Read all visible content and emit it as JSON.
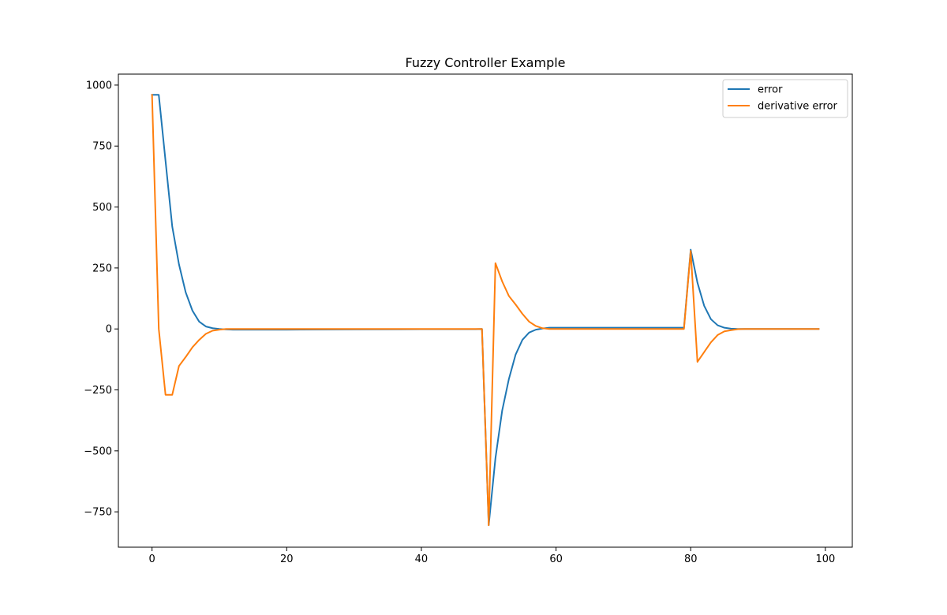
{
  "chart_data": {
    "type": "line",
    "title": "Fuzzy Controller Example",
    "xlabel": "",
    "ylabel": "",
    "xlim": [
      -5,
      104
    ],
    "ylim": [
      -895,
      1045
    ],
    "x_ticks": [
      0,
      20,
      40,
      60,
      80,
      100
    ],
    "x_tick_labels": [
      "0",
      "20",
      "40",
      "60",
      "80",
      "100"
    ],
    "y_ticks": [
      1000,
      750,
      500,
      250,
      0,
      -250,
      -500,
      -750
    ],
    "y_tick_labels": [
      "1000",
      "750",
      "500",
      "250",
      "0",
      "−250",
      "−500",
      "−750"
    ],
    "grid": false,
    "legend_position": "upper right",
    "series": [
      {
        "name": "error",
        "color": "#1f77b4",
        "points": [
          [
            0,
            960
          ],
          [
            1,
            960
          ],
          [
            2,
            690
          ],
          [
            3,
            420
          ],
          [
            4,
            265
          ],
          [
            5,
            150
          ],
          [
            6,
            75
          ],
          [
            7,
            30
          ],
          [
            8,
            10
          ],
          [
            9,
            3
          ],
          [
            10,
            0
          ],
          [
            11,
            -2
          ],
          [
            12,
            -3
          ],
          [
            20,
            -3
          ],
          [
            30,
            -2
          ],
          [
            40,
            -1
          ],
          [
            48,
            -1
          ],
          [
            49,
            0
          ],
          [
            50,
            -805
          ],
          [
            51,
            -530
          ],
          [
            52,
            -335
          ],
          [
            53,
            -205
          ],
          [
            54,
            -105
          ],
          [
            55,
            -45
          ],
          [
            56,
            -15
          ],
          [
            57,
            -3
          ],
          [
            58,
            2
          ],
          [
            59,
            5
          ],
          [
            60,
            5
          ],
          [
            70,
            5
          ],
          [
            78,
            5
          ],
          [
            79,
            5
          ],
          [
            80,
            325
          ],
          [
            81,
            190
          ],
          [
            82,
            95
          ],
          [
            83,
            40
          ],
          [
            84,
            15
          ],
          [
            85,
            5
          ],
          [
            86,
            1
          ],
          [
            87,
            0
          ],
          [
            90,
            0
          ],
          [
            99,
            0
          ]
        ]
      },
      {
        "name": "derivative error",
        "color": "#ff7f0e",
        "points": [
          [
            0,
            960
          ],
          [
            1,
            0
          ],
          [
            2,
            -270
          ],
          [
            3,
            -270
          ],
          [
            4,
            -152
          ],
          [
            5,
            -115
          ],
          [
            6,
            -75
          ],
          [
            7,
            -45
          ],
          [
            8,
            -20
          ],
          [
            9,
            -7
          ],
          [
            10,
            -3
          ],
          [
            11,
            0
          ],
          [
            12,
            0
          ],
          [
            20,
            0
          ],
          [
            30,
            0
          ],
          [
            40,
            0
          ],
          [
            48,
            0
          ],
          [
            49,
            0
          ],
          [
            50,
            -805
          ],
          [
            51,
            270
          ],
          [
            52,
            195
          ],
          [
            53,
            135
          ],
          [
            54,
            100
          ],
          [
            55,
            62
          ],
          [
            56,
            30
          ],
          [
            57,
            12
          ],
          [
            58,
            3
          ],
          [
            59,
            0
          ],
          [
            60,
            0
          ],
          [
            70,
            0
          ],
          [
            78,
            0
          ],
          [
            79,
            0
          ],
          [
            80,
            320
          ],
          [
            81,
            -135
          ],
          [
            82,
            -95
          ],
          [
            83,
            -55
          ],
          [
            84,
            -25
          ],
          [
            85,
            -10
          ],
          [
            86,
            -5
          ],
          [
            87,
            -1
          ],
          [
            88,
            0
          ],
          [
            90,
            0
          ],
          [
            99,
            0
          ]
        ]
      }
    ]
  }
}
